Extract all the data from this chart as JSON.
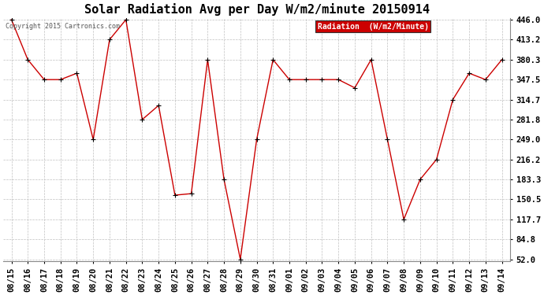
{
  "title": "Solar Radiation Avg per Day W/m2/minute 20150914",
  "copyright_text": "Copyright 2015 Cartronics.com",
  "legend_label": "Radiation  (W/m2/Minute)",
  "x_labels": [
    "08/15",
    "08/16",
    "08/17",
    "08/18",
    "08/19",
    "08/20",
    "08/21",
    "08/22",
    "08/23",
    "08/24",
    "08/25",
    "08/26",
    "08/27",
    "08/28",
    "08/29",
    "08/30",
    "08/31",
    "09/01",
    "09/02",
    "09/03",
    "09/04",
    "09/05",
    "09/06",
    "09/07",
    "09/08",
    "09/09",
    "09/10",
    "09/11",
    "09/12",
    "09/13",
    "09/14"
  ],
  "y_values": [
    446.0,
    380.3,
    347.5,
    347.5,
    358.0,
    249.0,
    413.2,
    446.0,
    281.8,
    305.0,
    157.5,
    160.0,
    380.3,
    183.3,
    52.0,
    249.0,
    380.3,
    347.5,
    347.5,
    347.5,
    347.5,
    334.0,
    380.3,
    249.0,
    117.7,
    183.3,
    216.2,
    314.7,
    358.0,
    347.5,
    380.3
  ],
  "y_min": 52.0,
  "y_max": 446.0,
  "y_ticks": [
    446.0,
    413.2,
    380.3,
    347.5,
    314.7,
    281.8,
    249.0,
    216.2,
    183.3,
    150.5,
    117.7,
    84.8,
    52.0
  ],
  "line_color": "#cc0000",
  "marker_color": "#000000",
  "bg_color": "#ffffff",
  "plot_bg_color": "#ffffff",
  "grid_color": "#c0c0c0",
  "title_fontsize": 11,
  "tick_fontsize": 7.5,
  "copyright_fontsize": 6,
  "legend_bg_color": "#cc0000",
  "legend_text_color": "#ffffff",
  "legend_fontsize": 7
}
